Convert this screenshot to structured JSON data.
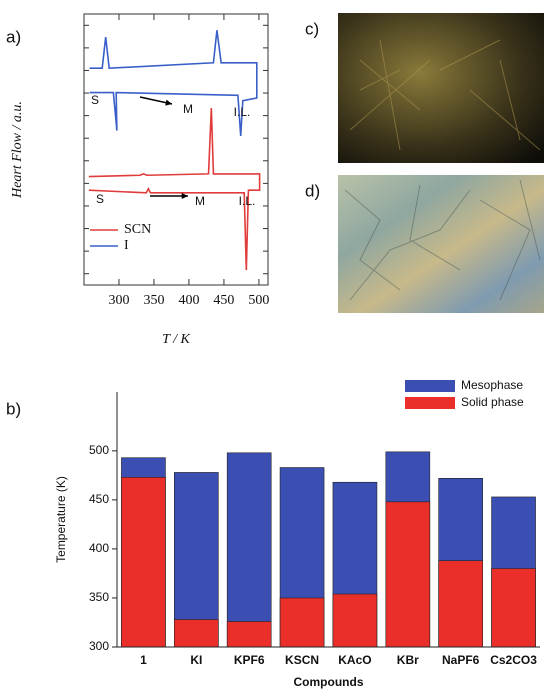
{
  "panel_labels": [
    "a)",
    "b)",
    "c)",
    "d)"
  ],
  "chart_data": [
    {
      "type": "line",
      "x_label": "T / K",
      "y_label": "Heart Flow / a.u.",
      "xlim": [
        250,
        513
      ],
      "xticks": [
        300,
        350,
        400,
        450,
        500
      ],
      "ylim": [
        0,
        100
      ],
      "annotations": [
        "S",
        "M",
        "I.L.",
        "S",
        "M",
        "I.L."
      ],
      "series": [
        {
          "name": "SCN",
          "color": "#e03c3c",
          "x": [
            257,
            330,
            335,
            340,
            428,
            432,
            435,
            501,
            501,
            485,
            482,
            479,
            345,
            342,
            339,
            257
          ],
          "values": [
            40,
            40.5,
            41,
            40.5,
            41,
            65.3,
            41,
            41,
            35,
            35,
            5.5,
            34,
            34,
            35.5,
            34,
            35
          ]
        },
        {
          "name": "I",
          "color": "#3a5fc8",
          "x": [
            258,
            276,
            281,
            286,
            435,
            440,
            446,
            497,
            497,
            477,
            474,
            470,
            296,
            297,
            292,
            258
          ],
          "values": [
            80,
            80,
            91.5,
            80,
            82,
            94,
            82,
            82,
            69,
            68,
            55,
            70,
            71,
            57,
            71,
            71
          ]
        }
      ]
    },
    {
      "type": "bar",
      "x_label": "Compounds",
      "y_label": "Temperature (K)",
      "categories": [
        "1",
        "KI",
        "KPF6",
        "KSCN",
        "KAcO",
        "KBr",
        "NaPF6",
        "Cs2CO3"
      ],
      "ylim": [
        300,
        560
      ],
      "yticks": [
        300,
        350,
        400,
        450,
        500
      ],
      "series": [
        {
          "name": "Mesophase",
          "color": "#3b4fb3",
          "values": [
            493,
            478,
            498,
            483,
            468,
            499,
            472,
            453
          ]
        },
        {
          "name": "Solid phase",
          "color": "#ea2f2a",
          "values": [
            473,
            328,
            326,
            350,
            354,
            448,
            388,
            380
          ]
        }
      ]
    }
  ]
}
